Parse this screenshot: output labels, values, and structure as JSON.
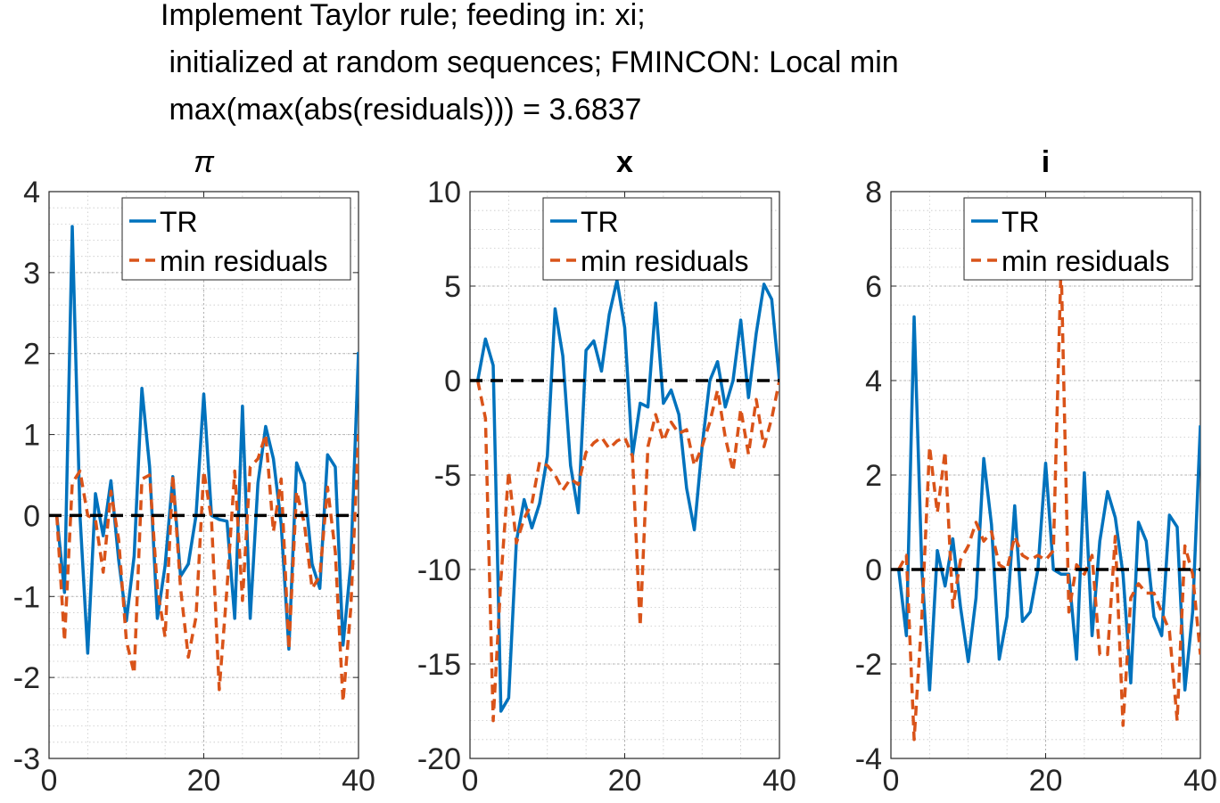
{
  "figure": {
    "title_lines": [
      "Implement Taylor rule; feeding in: xi;",
      " initialized at random sequences; FMINCON: Local min",
      " max(max(abs(residuals))) = 3.6837"
    ]
  },
  "colors": {
    "tr": "#0072BD",
    "min_residuals": "#D95319",
    "zero_line": "#000000"
  },
  "chart_data": [
    {
      "type": "line",
      "title": "π",
      "xlim": [
        0,
        40
      ],
      "ylim": [
        -3,
        4
      ],
      "xticks": [
        0,
        20,
        40
      ],
      "yticks": [
        -3,
        -2,
        -1,
        0,
        1,
        2,
        3,
        4
      ],
      "grid": true,
      "minor_grid": true,
      "legend_position": "top-right",
      "zero_line": 0,
      "series": [
        {
          "name": "TR",
          "style": "solid",
          "x": [
            1,
            2,
            3,
            4,
            5,
            6,
            7,
            8,
            9,
            10,
            11,
            12,
            13,
            14,
            15,
            16,
            17,
            18,
            19,
            20,
            21,
            22,
            23,
            24,
            25,
            26,
            27,
            28,
            29,
            30,
            31,
            32,
            33,
            34,
            35,
            36,
            37,
            38,
            39,
            40
          ],
          "values": [
            0,
            -0.95,
            3.57,
            0.0,
            -1.7,
            0.27,
            -0.25,
            0.43,
            -0.55,
            -1.3,
            -0.5,
            1.57,
            0.6,
            -1.27,
            -0.62,
            0.48,
            -0.75,
            -0.6,
            0.0,
            1.5,
            0.0,
            -0.05,
            -0.07,
            -1.27,
            1.35,
            -1.27,
            0.4,
            1.1,
            0.7,
            -0.1,
            -1.65,
            0.65,
            0.4,
            -0.6,
            -0.9,
            0.75,
            0.6,
            -1.6,
            -0.6,
            2.02
          ]
        },
        {
          "name": "min residuals",
          "style": "dashed",
          "x": [
            1,
            2,
            3,
            4,
            5,
            6,
            7,
            8,
            9,
            10,
            11,
            12,
            13,
            14,
            15,
            16,
            17,
            18,
            19,
            20,
            21,
            22,
            23,
            24,
            25,
            26,
            27,
            28,
            29,
            30,
            31,
            32,
            33,
            34,
            35,
            36,
            37,
            38,
            39,
            40
          ],
          "values": [
            0,
            -1.55,
            0.4,
            0.55,
            0.0,
            -0.05,
            -0.7,
            0.3,
            -0.3,
            -1.55,
            -1.95,
            0.45,
            0.5,
            -0.9,
            -1.5,
            0.5,
            -0.9,
            -1.75,
            -1.25,
            0.55,
            -0.05,
            -2.15,
            -0.9,
            0.55,
            -1.05,
            0.6,
            0.7,
            1.0,
            -0.2,
            0.45,
            -1.65,
            0.3,
            -0.1,
            -0.9,
            -0.75,
            0.35,
            -0.45,
            -2.3,
            -1.15,
            1.0
          ]
        }
      ]
    },
    {
      "type": "line",
      "title": "x",
      "xlim": [
        0,
        40
      ],
      "ylim": [
        -20,
        10
      ],
      "xticks": [
        0,
        20,
        40
      ],
      "yticks": [
        -20,
        -15,
        -10,
        -5,
        0,
        5,
        10
      ],
      "grid": true,
      "minor_grid": true,
      "legend_position": "top-right",
      "zero_line": 0,
      "series": [
        {
          "name": "TR",
          "style": "solid",
          "x": [
            1,
            2,
            3,
            4,
            5,
            6,
            7,
            8,
            9,
            10,
            11,
            12,
            13,
            14,
            15,
            16,
            17,
            18,
            19,
            20,
            21,
            22,
            23,
            24,
            25,
            26,
            27,
            28,
            29,
            30,
            31,
            32,
            33,
            34,
            35,
            36,
            37,
            38,
            39,
            40
          ],
          "values": [
            0,
            2.2,
            0.8,
            -17.5,
            -16.8,
            -8.5,
            -6.3,
            -7.8,
            -6.5,
            -4.0,
            3.8,
            1.3,
            -4.5,
            -7.0,
            1.6,
            2.1,
            0.5,
            3.5,
            5.3,
            2.8,
            -4.0,
            -1.2,
            -1.4,
            4.1,
            -1.2,
            -0.5,
            -1.8,
            -5.7,
            -7.9,
            -3.5,
            0.0,
            1.0,
            -1.4,
            0.0,
            3.2,
            -0.9,
            2.5,
            5.1,
            4.3,
            0.0
          ]
        },
        {
          "name": "min residuals",
          "style": "dashed",
          "x": [
            1,
            2,
            3,
            4,
            5,
            6,
            7,
            8,
            9,
            10,
            11,
            12,
            13,
            14,
            15,
            16,
            17,
            18,
            19,
            20,
            21,
            22,
            23,
            24,
            25,
            26,
            27,
            28,
            29,
            30,
            31,
            32,
            33,
            34,
            35,
            36,
            37,
            38,
            39,
            40
          ],
          "values": [
            0,
            -2.0,
            -18.0,
            -10.5,
            -4.8,
            -8.6,
            -7.3,
            -6.5,
            -4.3,
            -4.5,
            -5.0,
            -5.8,
            -5.2,
            -5.5,
            -3.8,
            -3.3,
            -3.0,
            -3.6,
            -3.2,
            -3.0,
            -4.0,
            -13.0,
            -3.5,
            -1.8,
            -3.2,
            -2.2,
            -2.8,
            -2.6,
            -4.5,
            -3.5,
            -2.2,
            -0.5,
            -3.0,
            -4.8,
            -1.5,
            -3.9,
            -1.0,
            -3.5,
            -2.0,
            0.0
          ]
        }
      ]
    },
    {
      "type": "line",
      "title": "i",
      "xlim": [
        0,
        40
      ],
      "ylim": [
        -4,
        8
      ],
      "xticks": [
        0,
        20,
        40
      ],
      "yticks": [
        -4,
        -2,
        0,
        2,
        4,
        6,
        8
      ],
      "grid": true,
      "minor_grid": true,
      "legend_position": "top-right",
      "zero_line": 0,
      "series": [
        {
          "name": "TR",
          "style": "solid",
          "x": [
            1,
            2,
            3,
            4,
            5,
            6,
            7,
            8,
            9,
            10,
            11,
            12,
            13,
            14,
            15,
            16,
            17,
            18,
            19,
            20,
            21,
            22,
            23,
            24,
            25,
            26,
            27,
            28,
            29,
            30,
            31,
            32,
            33,
            34,
            35,
            36,
            37,
            38,
            39,
            40
          ],
          "values": [
            0,
            -1.4,
            5.35,
            0.0,
            -2.55,
            0.4,
            -0.35,
            0.65,
            -0.8,
            -1.95,
            -0.6,
            2.35,
            0.95,
            -1.9,
            -1.0,
            1.35,
            -1.1,
            -0.9,
            0.0,
            2.25,
            0.0,
            -0.1,
            -0.1,
            -1.9,
            2.05,
            -1.4,
            0.6,
            1.65,
            1.1,
            -0.1,
            -2.4,
            1.0,
            0.6,
            -1.0,
            -1.4,
            1.15,
            0.9,
            -2.55,
            -0.9,
            3.05
          ]
        },
        {
          "name": "min residuals",
          "style": "dashed",
          "x": [
            1,
            2,
            3,
            4,
            5,
            6,
            7,
            8,
            9,
            10,
            11,
            12,
            13,
            14,
            15,
            16,
            17,
            18,
            19,
            20,
            21,
            22,
            23,
            24,
            25,
            26,
            27,
            28,
            29,
            30,
            31,
            32,
            33,
            34,
            35,
            36,
            37,
            38,
            39,
            40
          ],
          "values": [
            0,
            0.3,
            -3.6,
            -1.0,
            2.6,
            1.2,
            2.5,
            -0.8,
            0.2,
            0.5,
            1.0,
            0.6,
            0.8,
            0.1,
            0.0,
            0.7,
            0.3,
            0.2,
            0.3,
            0.2,
            0.4,
            6.5,
            -0.9,
            0.1,
            -0.1,
            0.3,
            -1.8,
            -1.8,
            0.7,
            -3.3,
            -0.6,
            -0.3,
            -0.5,
            -0.5,
            -0.9,
            -1.3,
            -3.2,
            0.5,
            -0.1,
            -1.8
          ]
        }
      ]
    }
  ]
}
